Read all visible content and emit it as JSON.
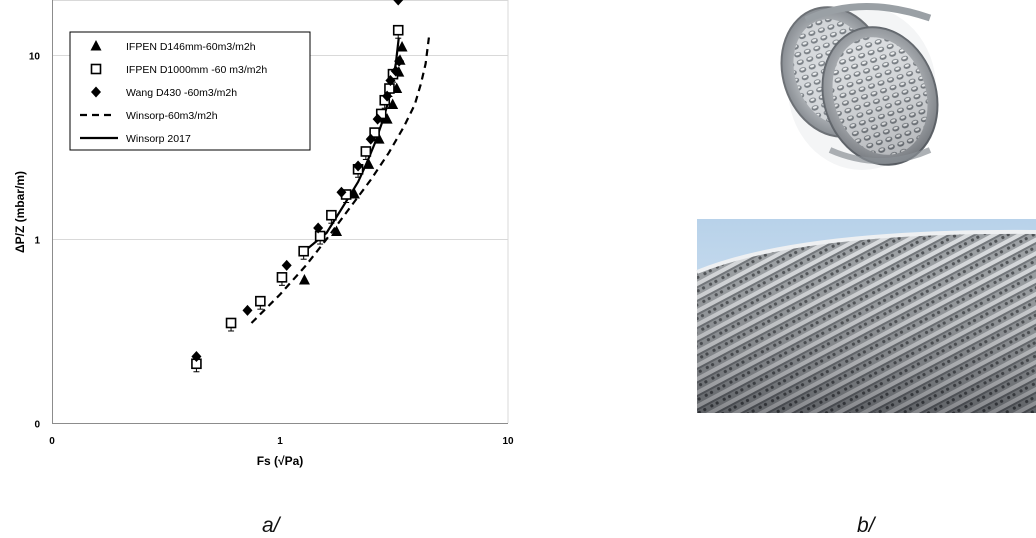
{
  "figure": {
    "caption_a": "a/",
    "caption_b": "b/"
  },
  "chart_data": {
    "type": "scatter",
    "xlabel": "Fs  (√Pa)",
    "ylabel": "ΔP/Z  (mbar/m)",
    "x_scale": "log",
    "y_scale": "log",
    "xlim": [
      0.1,
      10
    ],
    "ylim": [
      0.1,
      20
    ],
    "x_ticks": [
      {
        "value": 0.1,
        "label": "0"
      },
      {
        "value": 1,
        "label": "1"
      },
      {
        "value": 10,
        "label": "10"
      }
    ],
    "y_ticks": [
      {
        "value": 0.1,
        "label": "0"
      },
      {
        "value": 1,
        "label": "1"
      },
      {
        "value": 10,
        "label": "10"
      }
    ],
    "grid": "horizontal",
    "legend_position": "top-left",
    "series": [
      {
        "name": "IFPEN D146mm-60m3/m2h",
        "marker": "triangle",
        "points": [
          [
            1.28,
            0.6
          ],
          [
            1.77,
            1.1
          ],
          [
            2.12,
            1.76
          ],
          [
            2.45,
            2.55
          ],
          [
            2.72,
            3.5
          ],
          [
            2.95,
            4.5
          ],
          [
            3.12,
            5.4
          ],
          [
            3.25,
            6.6
          ],
          [
            3.32,
            8.1
          ],
          [
            3.36,
            9.4
          ],
          [
            3.43,
            11.1
          ]
        ]
      },
      {
        "name": "IFPEN D1000mm -60 m3/m2h",
        "marker": "square-open",
        "points": [
          [
            0.43,
            0.21
          ],
          [
            0.61,
            0.35
          ],
          [
            0.82,
            0.46
          ],
          [
            1.02,
            0.62
          ],
          [
            1.27,
            0.86
          ],
          [
            1.5,
            1.04
          ],
          [
            1.68,
            1.35
          ],
          [
            1.95,
            1.75
          ],
          [
            2.2,
            2.4
          ],
          [
            2.38,
            3.0
          ],
          [
            2.6,
            3.8
          ],
          [
            2.78,
            4.8
          ],
          [
            2.88,
            5.7
          ],
          [
            3.02,
            6.6
          ],
          [
            3.13,
            7.9
          ],
          [
            3.3,
            13.7
          ]
        ]
      },
      {
        "name": "Wang D430 -60m3/m2h",
        "marker": "diamond",
        "points": [
          [
            0.43,
            0.23
          ],
          [
            0.72,
            0.41
          ],
          [
            1.07,
            0.72
          ],
          [
            1.47,
            1.15
          ],
          [
            1.86,
            1.8
          ],
          [
            2.2,
            2.5
          ],
          [
            2.5,
            3.5
          ],
          [
            2.68,
            4.5
          ],
          [
            2.95,
            6.0
          ],
          [
            3.05,
            7.3
          ],
          [
            3.22,
            8.2
          ],
          [
            3.33,
            9.3
          ],
          [
            3.3,
            20.0
          ]
        ]
      },
      {
        "name": "Winsorp-60m3/m2h",
        "marker": "dashed-line",
        "points": [
          [
            0.75,
            0.35
          ],
          [
            1.0,
            0.5
          ],
          [
            1.3,
            0.72
          ],
          [
            1.6,
            1.0
          ],
          [
            2.0,
            1.45
          ],
          [
            2.5,
            2.1
          ],
          [
            3.0,
            2.95
          ],
          [
            3.5,
            4.1
          ],
          [
            3.9,
            5.4
          ],
          [
            4.15,
            7.0
          ],
          [
            4.35,
            9.0
          ],
          [
            4.5,
            12.5
          ]
        ]
      },
      {
        "name": "Winsorp 2017",
        "marker": "solid-line",
        "points": [
          [
            1.28,
            0.86
          ],
          [
            1.6,
            1.08
          ],
          [
            1.95,
            1.6
          ],
          [
            2.2,
            2.05
          ],
          [
            2.4,
            2.6
          ],
          [
            2.6,
            3.3
          ],
          [
            2.8,
            4.3
          ],
          [
            2.95,
            5.3
          ],
          [
            3.1,
            7.0
          ],
          [
            3.22,
            9.0
          ],
          [
            3.32,
            12.5
          ]
        ]
      }
    ]
  }
}
